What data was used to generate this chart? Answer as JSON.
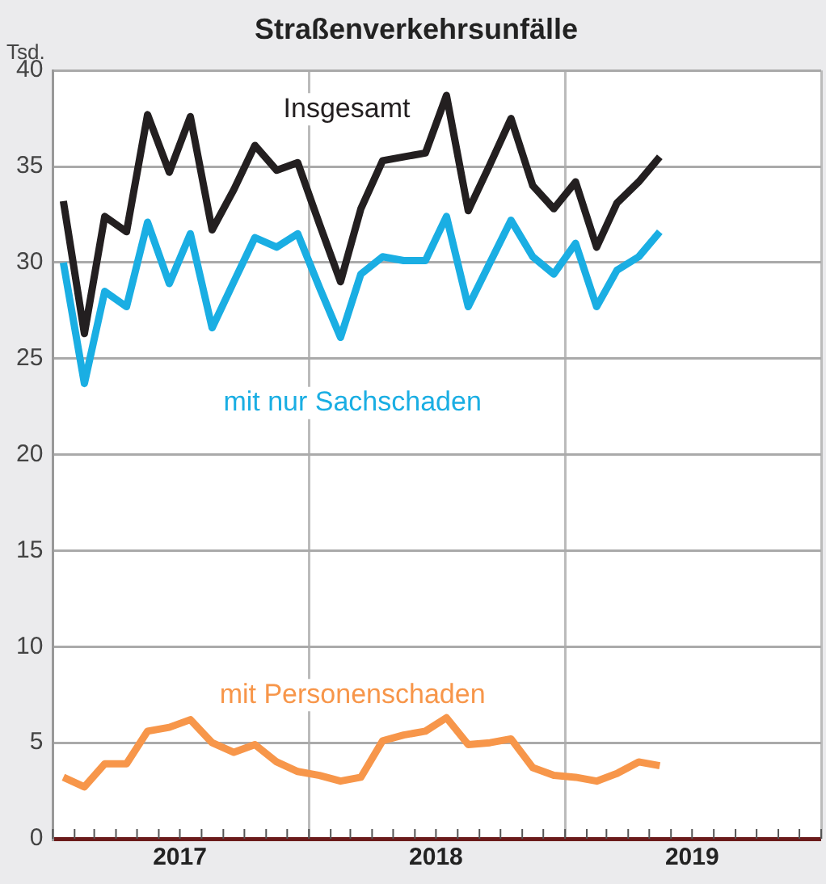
{
  "chart_data": {
    "type": "line",
    "title": "Straßenverkehrsunfälle",
    "ylabel": "Tsd.",
    "x": [
      "2017-01-16",
      "2017-02-15",
      "2017-03-16",
      "2017-04-16",
      "2017-05-16",
      "2017-06-16",
      "2017-07-16",
      "2017-08-16",
      "2017-09-16",
      "2017-10-16",
      "2017-11-16",
      "2017-12-16",
      "2018-01-16",
      "2018-02-15",
      "2018-03-16",
      "2018-04-16",
      "2018-05-16",
      "2018-06-16",
      "2018-07-16",
      "2018-08-16",
      "2018-09-16",
      "2018-10-16",
      "2018-11-16",
      "2018-12-16",
      "2019-01-16",
      "2019-02-15",
      "2019-03-16",
      "2019-04-16",
      "2019-05-16"
    ],
    "series": [
      {
        "name": "Insgesamt",
        "color": "#231f20",
        "values": [
          33.2,
          26.3,
          32.4,
          31.6,
          37.7,
          34.7,
          37.6,
          31.7,
          33.8,
          36.1,
          34.8,
          35.2,
          32.0,
          29.0,
          32.8,
          35.3,
          35.5,
          35.7,
          38.7,
          32.7,
          35.1,
          37.5,
          34.0,
          32.8,
          34.2,
          30.8,
          33.1,
          34.2,
          35.5
        ]
      },
      {
        "name": "mit nur Sachschaden",
        "color": "#1aaee3",
        "values": [
          30.0,
          23.7,
          28.5,
          27.7,
          32.1,
          28.9,
          31.5,
          26.6,
          29.0,
          31.3,
          30.8,
          31.5,
          28.7,
          26.1,
          29.4,
          30.3,
          30.1,
          30.1,
          32.4,
          27.7,
          30.0,
          32.2,
          30.3,
          29.4,
          31.0,
          27.7,
          29.6,
          30.3,
          31.6
        ]
      },
      {
        "name": "mit Personenschaden",
        "color": "#f7964a",
        "values": [
          3.2,
          2.7,
          3.9,
          3.9,
          5.6,
          5.8,
          6.2,
          5.0,
          4.5,
          4.9,
          4.0,
          3.5,
          3.3,
          3.0,
          3.2,
          5.1,
          5.4,
          5.6,
          6.3,
          4.9,
          5.0,
          5.2,
          3.7,
          3.3,
          3.2,
          3.0,
          3.4,
          4.0,
          3.8
        ]
      }
    ],
    "xlim": [
      "2017-01-01",
      "2020-01-01"
    ],
    "xticks": [
      {
        "value": "2017-01-01",
        "label": null
      },
      {
        "value": "2017-02-01",
        "label": null
      },
      {
        "value": "2017-03-01",
        "label": null
      },
      {
        "value": "2017-04-01",
        "label": null
      },
      {
        "value": "2017-05-01",
        "label": null
      },
      {
        "value": "2017-06-01",
        "label": null
      },
      {
        "value": "2017-07-01",
        "label": "2017"
      },
      {
        "value": "2017-08-01",
        "label": null
      },
      {
        "value": "2017-09-01",
        "label": null
      },
      {
        "value": "2017-10-01",
        "label": null
      },
      {
        "value": "2017-11-01",
        "label": null
      },
      {
        "value": "2017-12-01",
        "label": null
      },
      {
        "value": "2018-01-01",
        "label": null
      },
      {
        "value": "2018-02-01",
        "label": null
      },
      {
        "value": "2018-03-01",
        "label": null
      },
      {
        "value": "2018-04-01",
        "label": null
      },
      {
        "value": "2018-05-01",
        "label": null
      },
      {
        "value": "2018-06-01",
        "label": null
      },
      {
        "value": "2018-07-01",
        "label": "2018"
      },
      {
        "value": "2018-08-01",
        "label": null
      },
      {
        "value": "2018-09-01",
        "label": null
      },
      {
        "value": "2018-10-01",
        "label": null
      },
      {
        "value": "2018-11-01",
        "label": null
      },
      {
        "value": "2018-12-01",
        "label": null
      },
      {
        "value": "2019-01-01",
        "label": null
      },
      {
        "value": "2019-02-01",
        "label": null
      },
      {
        "value": "2019-03-01",
        "label": null
      },
      {
        "value": "2019-04-01",
        "label": null
      },
      {
        "value": "2019-05-01",
        "label": null
      },
      {
        "value": "2019-06-01",
        "label": null
      },
      {
        "value": "2019-07-01",
        "label": "2019"
      },
      {
        "value": "2019-08-01",
        "label": null
      },
      {
        "value": "2019-09-01",
        "label": null
      },
      {
        "value": "2019-10-01",
        "label": null
      },
      {
        "value": "2019-11-01",
        "label": null
      },
      {
        "value": "2019-12-01",
        "label": null
      },
      {
        "value": "2020-01-01",
        "label": null
      }
    ],
    "ylim": [
      0,
      40
    ],
    "yticks": [
      0,
      5,
      10,
      15,
      20,
      25,
      30,
      35,
      40
    ],
    "grid": true,
    "legend": false,
    "marker": "none",
    "line_style": "solid"
  }
}
